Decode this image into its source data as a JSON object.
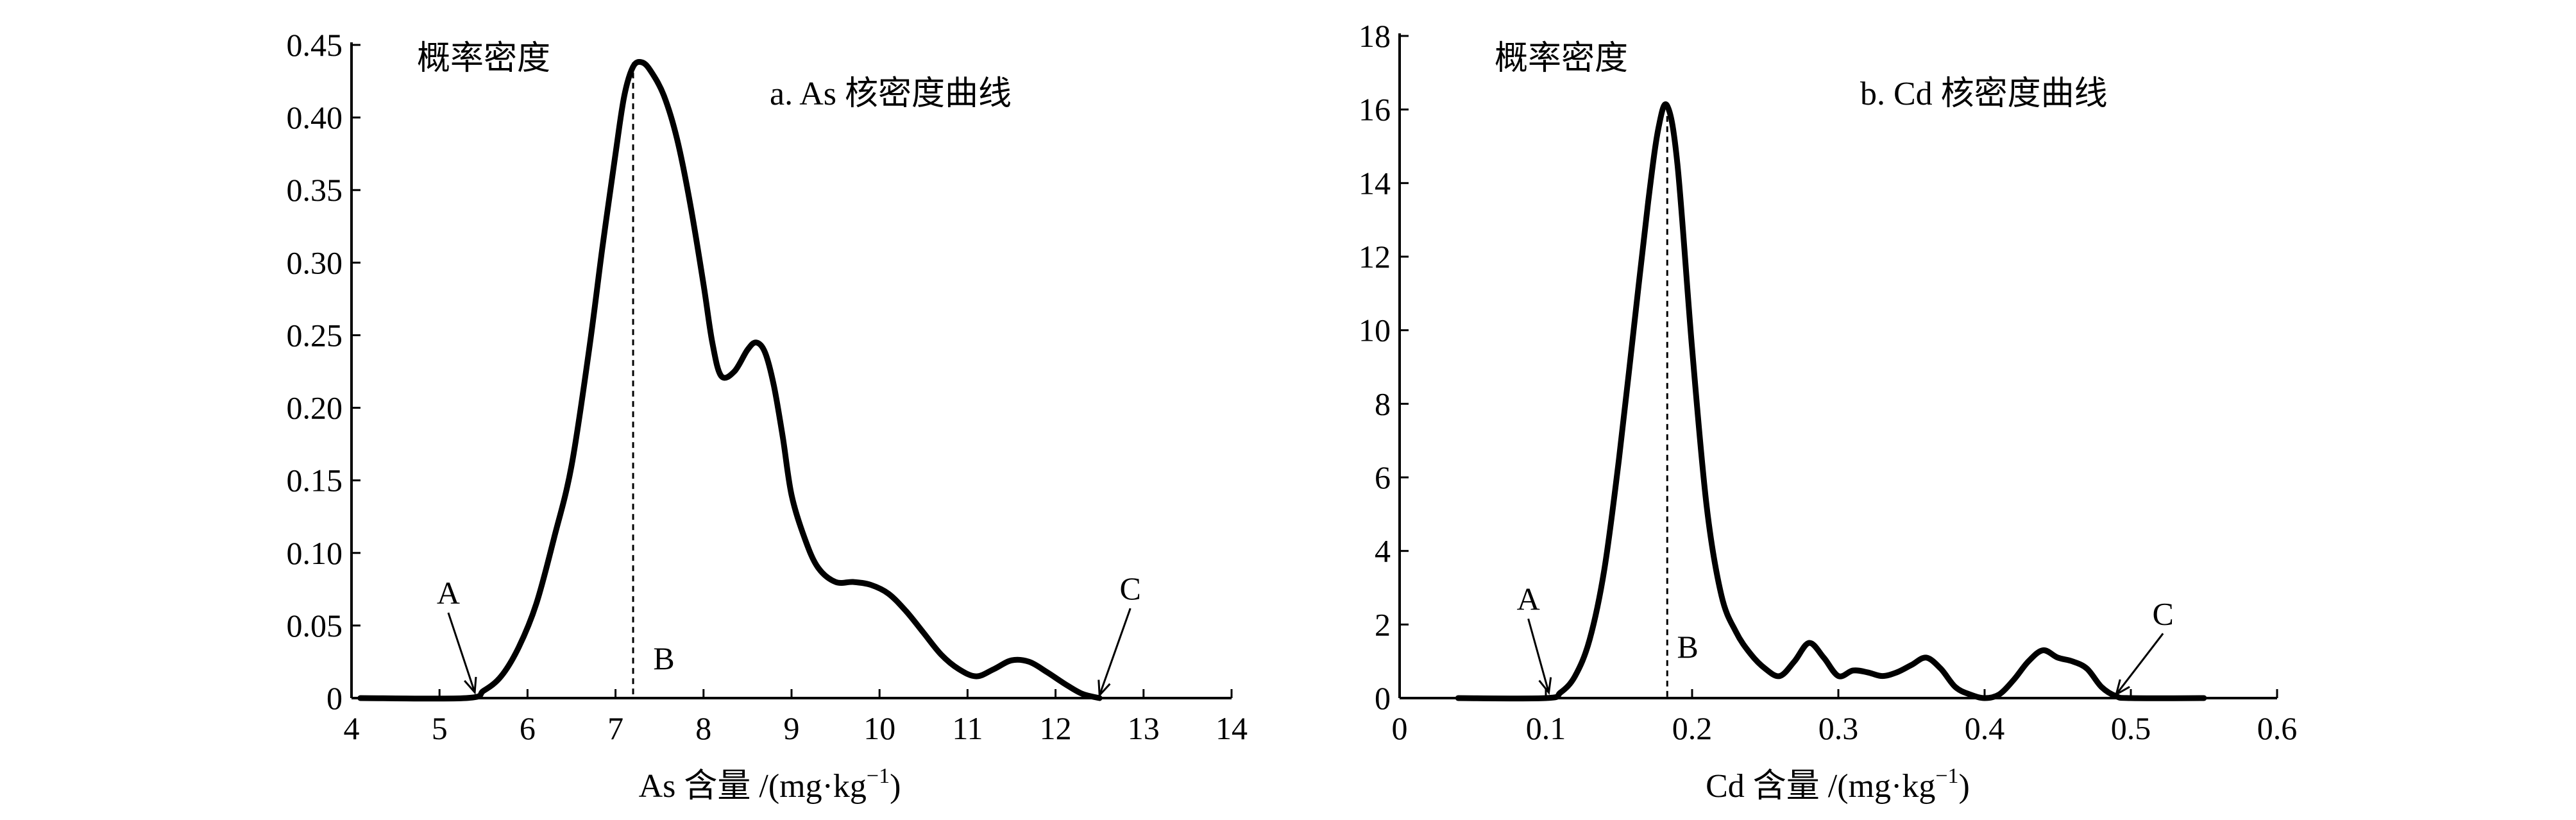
{
  "chart_data": [
    {
      "type": "line",
      "title": "a. As 核密度曲线",
      "ylabel": "概率密度",
      "xlabel": "As 含量 /(mg·kg",
      "xlabel_sup": "−1",
      "xlabel_close": ")",
      "xlim": [
        4,
        14
      ],
      "ylim": [
        0,
        0.45
      ],
      "xticks": [
        4,
        5,
        6,
        7,
        8,
        9,
        10,
        11,
        12,
        13,
        14
      ],
      "xtick_labels": [
        "4",
        "5",
        "6",
        "7",
        "8",
        "9",
        "10",
        "11",
        "12",
        "13",
        "14"
      ],
      "yticks": [
        0,
        0.05,
        0.1,
        0.15,
        0.2,
        0.25,
        0.3,
        0.35,
        0.4,
        0.45
      ],
      "ytick_labels": [
        "0",
        "0.05",
        "0.10",
        "0.15",
        "0.20",
        "0.25",
        "0.30",
        "0.35",
        "0.40",
        "0.45"
      ],
      "series": [
        {
          "x": [
            4.1,
            5.3,
            5.5,
            5.7,
            5.9,
            6.1,
            6.3,
            6.5,
            6.7,
            6.85,
            7.0,
            7.1,
            7.2,
            7.3,
            7.4,
            7.55,
            7.7,
            7.85,
            8.0,
            8.1,
            8.2,
            8.35,
            8.5,
            8.6,
            8.7,
            8.8,
            8.9,
            9.0,
            9.15,
            9.3,
            9.5,
            9.7,
            9.9,
            10.1,
            10.3,
            10.5,
            10.7,
            10.9,
            11.1,
            11.3,
            11.5,
            11.7,
            11.9,
            12.1,
            12.3,
            12.5
          ],
          "y": [
            0.0,
            0.0,
            0.005,
            0.015,
            0.035,
            0.065,
            0.11,
            0.16,
            0.24,
            0.31,
            0.375,
            0.415,
            0.435,
            0.438,
            0.432,
            0.415,
            0.385,
            0.34,
            0.285,
            0.245,
            0.222,
            0.225,
            0.24,
            0.245,
            0.238,
            0.215,
            0.18,
            0.14,
            0.11,
            0.09,
            0.08,
            0.08,
            0.078,
            0.072,
            0.06,
            0.045,
            0.03,
            0.02,
            0.015,
            0.02,
            0.026,
            0.025,
            0.018,
            0.01,
            0.003,
            0.0
          ]
        }
      ],
      "dashed_x": 7.2,
      "annotations": [
        {
          "label": "A",
          "text_x": 5.1,
          "text_y": 0.065,
          "arrow_to_x": 5.4,
          "arrow_to_y": 0.004
        },
        {
          "label": "B",
          "text_x": 7.55,
          "text_y": 0.02
        },
        {
          "label": "C",
          "text_x": 12.85,
          "text_y": 0.068,
          "arrow_to_x": 12.5,
          "arrow_to_y": 0.002
        }
      ]
    },
    {
      "type": "line",
      "title": "b. Cd 核密度曲线",
      "ylabel": "概率密度",
      "xlabel": "Cd 含量 /(mg·kg",
      "xlabel_sup": "−1",
      "xlabel_close": ")",
      "xlim": [
        0,
        0.6
      ],
      "ylim": [
        0,
        18
      ],
      "xticks": [
        0,
        0.1,
        0.2,
        0.3,
        0.4,
        0.5,
        0.6
      ],
      "xtick_labels": [
        "0",
        "0.1",
        "0.2",
        "0.3",
        "0.4",
        "0.5",
        "0.6"
      ],
      "yticks": [
        0,
        2,
        4,
        6,
        8,
        10,
        12,
        14,
        16,
        18
      ],
      "ytick_labels": [
        "0",
        "2",
        "4",
        "6",
        "8",
        "10",
        "12",
        "14",
        "16",
        "18"
      ],
      "series": [
        {
          "x": [
            0.04,
            0.1,
            0.11,
            0.12,
            0.13,
            0.14,
            0.15,
            0.16,
            0.17,
            0.177,
            0.183,
            0.19,
            0.2,
            0.21,
            0.22,
            0.23,
            0.24,
            0.25,
            0.26,
            0.27,
            0.28,
            0.29,
            0.3,
            0.31,
            0.32,
            0.33,
            0.34,
            0.35,
            0.36,
            0.37,
            0.38,
            0.39,
            0.4,
            0.41,
            0.42,
            0.43,
            0.44,
            0.45,
            0.46,
            0.47,
            0.48,
            0.49,
            0.5,
            0.55
          ],
          "y": [
            0.0,
            0.0,
            0.15,
            0.6,
            1.6,
            3.5,
            6.5,
            10.0,
            13.5,
            15.5,
            16.1,
            14.5,
            9.5,
            5.2,
            2.8,
            1.8,
            1.2,
            0.8,
            0.6,
            1.0,
            1.5,
            1.1,
            0.6,
            0.75,
            0.7,
            0.6,
            0.7,
            0.9,
            1.1,
            0.8,
            0.3,
            0.1,
            0.0,
            0.1,
            0.5,
            1.0,
            1.3,
            1.1,
            1.0,
            0.8,
            0.3,
            0.05,
            0.0,
            0.0
          ]
        }
      ],
      "dashed_x": 0.183,
      "annotations": [
        {
          "label": "A",
          "text_x": 0.088,
          "text_y": 2.4,
          "arrow_to_x": 0.102,
          "arrow_to_y": 0.15
        },
        {
          "label": "B",
          "text_x": 0.197,
          "text_y": 1.1
        },
        {
          "label": "C",
          "text_x": 0.522,
          "text_y": 2.0,
          "arrow_to_x": 0.49,
          "arrow_to_y": 0.1
        }
      ]
    }
  ]
}
